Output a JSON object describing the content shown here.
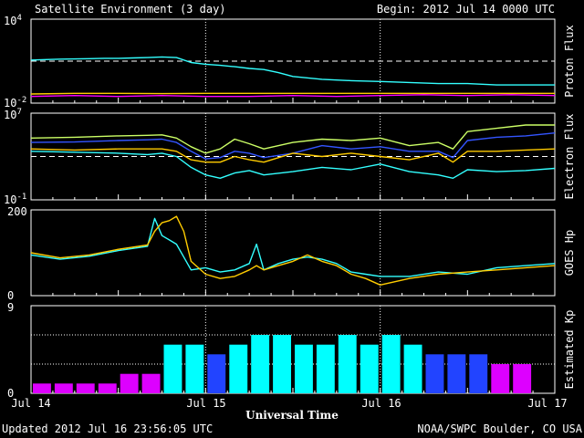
{
  "header": {
    "title": "Satellite Environment (3 day)",
    "begin": "Begin:  2012 Jul 14 0000 UTC"
  },
  "footer": {
    "updated": "Updated 2012 Jul 16 23:56:05 UTC",
    "source": "NOAA/SWPC Boulder, CO USA"
  },
  "x_axis": {
    "label": "Universal Time",
    "ticks": [
      "Jul 14",
      "Jul 15",
      "Jul 16",
      "Jul 17"
    ]
  },
  "colors": {
    "cyan": "#33ffff",
    "yellow": "#ffcc00",
    "magenta": "#ff00ff",
    "green": "#ccff66",
    "blue": "#3355ff",
    "bar_low": "#dd00ff",
    "bar_mid": "#00ffff",
    "bar_hi": "#2244ff"
  },
  "chart_data": [
    {
      "id": "proton",
      "type": "line",
      "ylabel": "Proton Flux",
      "yscale": "log",
      "ylim": [
        0.01,
        10000
      ],
      "yticks": [
        {
          "mant": "10",
          "exp": "4"
        },
        {
          "mant": "10",
          "exp": "-2"
        }
      ],
      "thresholds": [
        10
      ],
      "series": [
        {
          "color": "cyan",
          "x": [
            0,
            4,
            8,
            10,
            12,
            14,
            16,
            18,
            20,
            22,
            24,
            26,
            28,
            30,
            32,
            34,
            36,
            40,
            44,
            48,
            52,
            56,
            60,
            64,
            68,
            72
          ],
          "y": [
            12,
            14,
            15,
            16,
            16,
            17,
            18,
            20,
            18,
            8,
            6,
            5,
            4,
            3,
            2.5,
            1.5,
            0.8,
            0.5,
            0.4,
            0.35,
            0.3,
            0.25,
            0.25,
            0.2,
            0.2,
            0.2
          ]
        },
        {
          "color": "yellow",
          "x": [
            0,
            6,
            12,
            18,
            24,
            30,
            36,
            42,
            48,
            54,
            60,
            66,
            72
          ],
          "y": [
            0.045,
            0.05,
            0.05,
            0.048,
            0.05,
            0.05,
            0.05,
            0.05,
            0.05,
            0.05,
            0.05,
            0.05,
            0.05
          ]
        },
        {
          "color": "magenta",
          "x": [
            0,
            6,
            12,
            18,
            24,
            30,
            36,
            42,
            48,
            54,
            60,
            66,
            72
          ],
          "y": [
            0.03,
            0.035,
            0.03,
            0.035,
            0.03,
            0.03,
            0.035,
            0.03,
            0.035,
            0.04,
            0.035,
            0.04,
            0.035
          ]
        }
      ]
    },
    {
      "id": "electron",
      "type": "line",
      "ylabel": "Electron Flux",
      "yscale": "log",
      "ylim": [
        0.1,
        10000000
      ],
      "yticks": [
        {
          "mant": "10",
          "exp": "7"
        },
        {
          "mant": "10",
          "exp": "-1"
        }
      ],
      "thresholds": [
        1000
      ],
      "series": [
        {
          "color": "green",
          "x": [
            0,
            6,
            12,
            16,
            18,
            20,
            22,
            24,
            26,
            28,
            30,
            32,
            36,
            40,
            44,
            48,
            52,
            56,
            58,
            60,
            64,
            68,
            72
          ],
          "y": [
            50000,
            60000,
            80000,
            90000,
            100000,
            50000,
            8000,
            2000,
            5000,
            40000,
            15000,
            5000,
            20000,
            40000,
            30000,
            50000,
            10000,
            20000,
            5000,
            200000,
            400000,
            800000,
            800000
          ]
        },
        {
          "color": "blue",
          "x": [
            0,
            6,
            12,
            16,
            18,
            20,
            22,
            24,
            26,
            28,
            30,
            32,
            36,
            40,
            44,
            48,
            52,
            56,
            58,
            60,
            64,
            68,
            72
          ],
          "y": [
            20000,
            22000,
            30000,
            35000,
            40000,
            20000,
            3000,
            600,
            800,
            3000,
            2000,
            800,
            2000,
            10000,
            5000,
            8000,
            3000,
            3000,
            800,
            30000,
            60000,
            80000,
            150000
          ]
        },
        {
          "color": "yellow",
          "x": [
            0,
            6,
            12,
            16,
            18,
            20,
            22,
            24,
            26,
            28,
            30,
            32,
            36,
            40,
            44,
            48,
            52,
            56,
            58,
            60,
            64,
            68,
            72
          ],
          "y": [
            5000,
            4000,
            5000,
            5000,
            5000,
            3000,
            500,
            300,
            300,
            1000,
            500,
            300,
            2000,
            1000,
            2000,
            1000,
            500,
            2000,
            300,
            3000,
            3000,
            4000,
            5000
          ]
        },
        {
          "color": "cyan",
          "x": [
            0,
            6,
            12,
            16,
            18,
            20,
            22,
            24,
            26,
            28,
            30,
            32,
            36,
            40,
            44,
            48,
            52,
            56,
            58,
            60,
            64,
            68,
            72
          ],
          "y": [
            3000,
            2500,
            2000,
            1500,
            2000,
            1000,
            100,
            20,
            10,
            30,
            50,
            20,
            40,
            100,
            60,
            200,
            40,
            20,
            10,
            60,
            40,
            50,
            80
          ]
        }
      ]
    },
    {
      "id": "hp",
      "type": "line",
      "ylabel": "GOES Hp",
      "yscale": "linear",
      "ylim": [
        0,
        200
      ],
      "yticks": [
        {
          "label": "200",
          "value": 200
        },
        {
          "label": "0",
          "value": 0
        }
      ],
      "thresholds": [],
      "series": [
        {
          "color": "cyan",
          "x": [
            0,
            4,
            8,
            12,
            16,
            17,
            18,
            19,
            20,
            21,
            22,
            24,
            26,
            28,
            30,
            31,
            32,
            34,
            36,
            38,
            40,
            42,
            44,
            46,
            48,
            52,
            56,
            60,
            64,
            68,
            72
          ],
          "y": [
            95,
            85,
            92,
            105,
            115,
            180,
            140,
            130,
            120,
            90,
            60,
            65,
            55,
            60,
            75,
            120,
            60,
            75,
            85,
            90,
            85,
            75,
            55,
            50,
            45,
            45,
            55,
            50,
            65,
            70,
            75
          ]
        },
        {
          "color": "yellow",
          "x": [
            0,
            4,
            8,
            12,
            16,
            17,
            18,
            19,
            20,
            21,
            22,
            24,
            26,
            28,
            30,
            31,
            32,
            34,
            36,
            38,
            40,
            42,
            44,
            46,
            48,
            52,
            56,
            60,
            64,
            68,
            72
          ],
          "y": [
            100,
            88,
            95,
            108,
            118,
            150,
            170,
            175,
            185,
            150,
            80,
            50,
            40,
            45,
            60,
            70,
            60,
            70,
            80,
            95,
            80,
            70,
            50,
            40,
            25,
            40,
            50,
            55,
            60,
            65,
            70
          ]
        }
      ]
    },
    {
      "id": "kp",
      "type": "bar",
      "ylabel": "Estimated Kp",
      "yscale": "linear",
      "ylim": [
        0,
        9
      ],
      "yticks": [
        {
          "label": "9",
          "value": 9
        },
        {
          "label": "0",
          "value": 0
        }
      ],
      "gridlines": [
        3,
        6,
        9
      ],
      "values": [
        1,
        1,
        1,
        1,
        2,
        2,
        5,
        5,
        4,
        5,
        6,
        6,
        5,
        5,
        6,
        5,
        6,
        5,
        4,
        4,
        4,
        3,
        3
      ],
      "colors": [
        "bar_low",
        "bar_low",
        "bar_low",
        "bar_low",
        "bar_low",
        "bar_low",
        "bar_mid",
        "bar_mid",
        "bar_hi",
        "bar_mid",
        "bar_mid",
        "bar_mid",
        "bar_mid",
        "bar_mid",
        "bar_mid",
        "bar_mid",
        "bar_mid",
        "bar_mid",
        "bar_hi",
        "bar_hi",
        "bar_hi",
        "bar_low",
        "bar_low"
      ]
    }
  ]
}
